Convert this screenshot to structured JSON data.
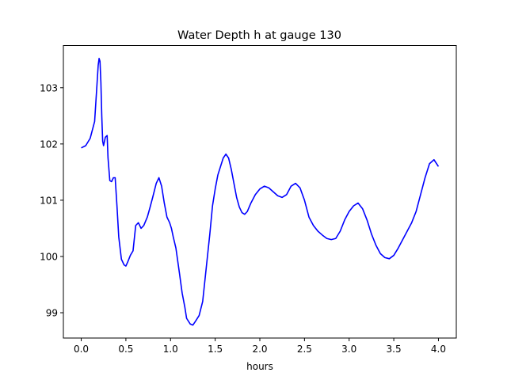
{
  "chart_data": {
    "type": "line",
    "title": "Water Depth h at gauge 130",
    "xlabel": "hours",
    "ylabel": "",
    "xlim": [
      -0.2,
      4.2
    ],
    "ylim": [
      98.55,
      103.75
    ],
    "xticks": [
      0.0,
      0.5,
      1.0,
      1.5,
      2.0,
      2.5,
      3.0,
      3.5,
      4.0
    ],
    "xtick_labels": [
      "0.0",
      "0.5",
      "1.0",
      "1.5",
      "2.0",
      "2.5",
      "3.0",
      "3.5",
      "4.0"
    ],
    "yticks": [
      99,
      100,
      101,
      102,
      103
    ],
    "ytick_labels": [
      "99",
      "100",
      "101",
      "102",
      "103"
    ],
    "grid": false,
    "series": [
      {
        "color": "#0000ff",
        "x": [
          0.0,
          0.05,
          0.1,
          0.15,
          0.17,
          0.19,
          0.2,
          0.21,
          0.22,
          0.23,
          0.24,
          0.25,
          0.27,
          0.29,
          0.3,
          0.32,
          0.34,
          0.36,
          0.38,
          0.4,
          0.42,
          0.45,
          0.48,
          0.5,
          0.52,
          0.55,
          0.58,
          0.61,
          0.64,
          0.67,
          0.7,
          0.74,
          0.77,
          0.8,
          0.84,
          0.87,
          0.9,
          0.93,
          0.96,
          0.99,
          1.01,
          1.03,
          1.06,
          1.1,
          1.13,
          1.16,
          1.18,
          1.22,
          1.25,
          1.28,
          1.32,
          1.36,
          1.4,
          1.44,
          1.47,
          1.5,
          1.53,
          1.56,
          1.59,
          1.62,
          1.65,
          1.68,
          1.71,
          1.74,
          1.77,
          1.8,
          1.83,
          1.86,
          1.9,
          1.95,
          2.0,
          2.05,
          2.1,
          2.15,
          2.2,
          2.25,
          2.3,
          2.35,
          2.4,
          2.45,
          2.5,
          2.55,
          2.6,
          2.65,
          2.7,
          2.75,
          2.8,
          2.85,
          2.9,
          2.95,
          3.0,
          3.05,
          3.1,
          3.15,
          3.2,
          3.25,
          3.3,
          3.35,
          3.4,
          3.45,
          3.5,
          3.55,
          3.6,
          3.65,
          3.7,
          3.75,
          3.8,
          3.85,
          3.9,
          3.95,
          4.0
        ],
        "y": [
          101.93,
          101.97,
          102.1,
          102.4,
          102.9,
          103.4,
          103.52,
          103.47,
          103.1,
          102.5,
          102.05,
          101.97,
          102.12,
          102.15,
          101.75,
          101.35,
          101.33,
          101.4,
          101.4,
          100.9,
          100.35,
          99.95,
          99.85,
          99.83,
          99.9,
          100.02,
          100.1,
          100.55,
          100.6,
          100.5,
          100.55,
          100.7,
          100.87,
          101.05,
          101.3,
          101.4,
          101.25,
          100.95,
          100.7,
          100.6,
          100.5,
          100.35,
          100.15,
          99.7,
          99.35,
          99.1,
          98.9,
          98.8,
          98.78,
          98.85,
          98.95,
          99.2,
          99.8,
          100.4,
          100.9,
          101.2,
          101.45,
          101.6,
          101.75,
          101.82,
          101.75,
          101.55,
          101.3,
          101.05,
          100.88,
          100.78,
          100.75,
          100.8,
          100.95,
          101.1,
          101.2,
          101.25,
          101.22,
          101.15,
          101.08,
          101.05,
          101.1,
          101.25,
          101.3,
          101.22,
          101.0,
          100.7,
          100.55,
          100.45,
          100.38,
          100.32,
          100.3,
          100.32,
          100.45,
          100.65,
          100.8,
          100.9,
          100.95,
          100.85,
          100.65,
          100.4,
          100.2,
          100.05,
          99.98,
          99.96,
          100.02,
          100.15,
          100.3,
          100.45,
          100.6,
          100.8,
          101.1,
          101.4,
          101.65,
          101.72,
          101.6
        ]
      }
    ]
  }
}
